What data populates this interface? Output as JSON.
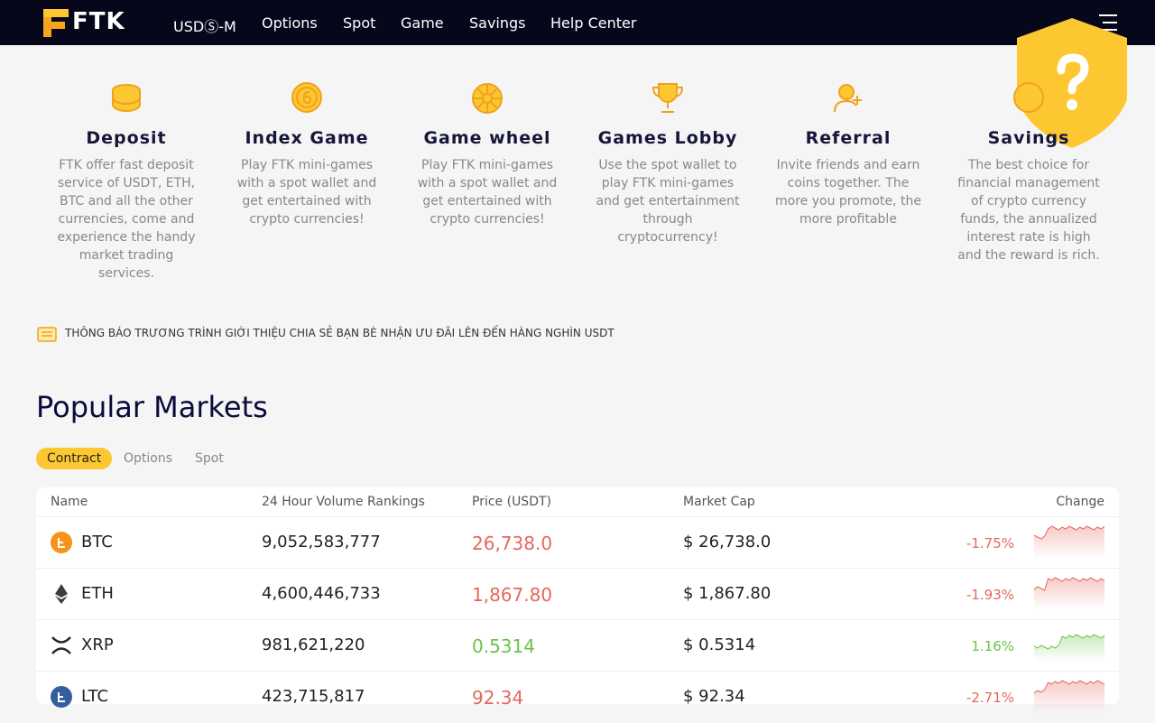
{
  "nav": {
    "logo": "FTK",
    "items": [
      "USDⓈ-M",
      "Options",
      "Spot",
      "Game",
      "Savings",
      "Help Center"
    ]
  },
  "features": [
    {
      "title": "Deposit",
      "text": "FTK offer fast deposit service of USDT, ETH, BTC and all the other currencies, come and experience the handy market trading services."
    },
    {
      "title": "Index Game",
      "text": "Play FTK mini-games with a spot wallet and get entertained with crypto currencies!"
    },
    {
      "title": "Game wheel",
      "text": "Play FTK mini-games with a spot wallet and get entertained with crypto currencies!"
    },
    {
      "title": "Games Lobby",
      "text": "Use the spot wallet to play FTK mini-games and get entertainment through cryptocurrency!"
    },
    {
      "title": "Referral",
      "text": "Invite friends and earn coins together. The more you promote, the more profitable"
    },
    {
      "title": "Savings",
      "text": "The best choice for financial management of crypto currency funds, the annualized interest rate is high and the reward is rich."
    }
  ],
  "notice": "THÔNG BÁO TRƯƠNG TRÌNH GIỚI THIỆU CHIA SẺ BẠN BÈ NHẬN ƯU ĐÃI LÊN ĐẾN HÀNG NGHÌN USDT",
  "markets": {
    "title": "Popular Markets",
    "tabs": [
      "Contract",
      "Options",
      "Spot"
    ],
    "columns": [
      "Name",
      "24 Hour Volume Rankings",
      "Price (USDT)",
      "Market Cap",
      "Change"
    ],
    "rows": [
      {
        "name": "BTC",
        "volume": "9,052,583,777",
        "price": "26,738.0",
        "cap": "$ 26,738.0",
        "change": "-1.75%"
      },
      {
        "name": "ETH",
        "volume": "4,600,446,733",
        "price": "1,867.80",
        "cap": "$ 1,867.80",
        "change": "-1.93%"
      },
      {
        "name": "XRP",
        "volume": "981,621,220",
        "price": "0.5314",
        "cap": "$ 0.5314",
        "change": "1.16%"
      },
      {
        "name": "LTC",
        "volume": "423,715,817",
        "price": "92.34",
        "cap": "$ 92.34",
        "change": "-2.71%"
      }
    ]
  }
}
